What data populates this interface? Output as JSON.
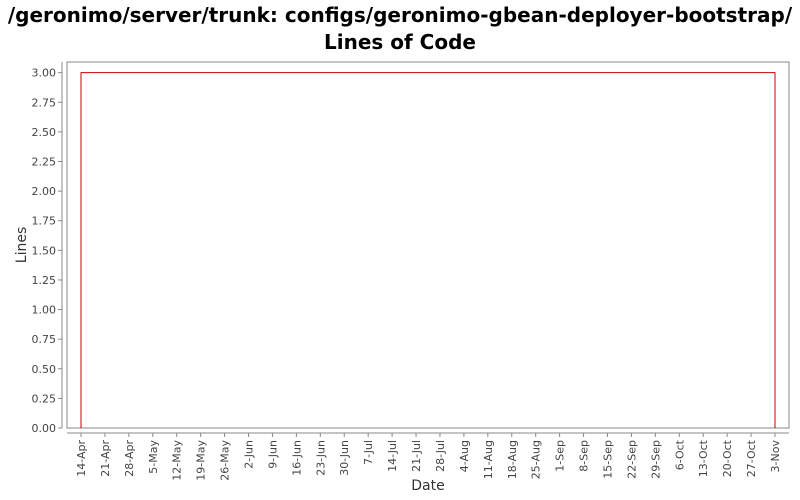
{
  "chart_data": {
    "type": "line",
    "title": "/geronimo/server/trunk: configs/geronimo-gbean-deployer-bootstrap/ Lines of Code",
    "xlabel": "Date",
    "ylabel": "Lines",
    "ylim": [
      0,
      3.09
    ],
    "yticks": [
      "0.00",
      "0.25",
      "0.50",
      "0.75",
      "1.00",
      "1.25",
      "1.50",
      "1.75",
      "2.00",
      "2.25",
      "2.50",
      "2.75",
      "3.00"
    ],
    "xticks": [
      "14-Apr",
      "21-Apr",
      "28-Apr",
      "5-May",
      "12-May",
      "19-May",
      "26-May",
      "2-Jun",
      "9-Jun",
      "16-Jun",
      "23-Jun",
      "30-Jun",
      "7-Jul",
      "14-Jul",
      "21-Jul",
      "28-Jul",
      "4-Aug",
      "11-Aug",
      "18-Aug",
      "25-Aug",
      "1-Sep",
      "8-Sep",
      "15-Sep",
      "22-Sep",
      "29-Sep",
      "6-Oct",
      "13-Oct",
      "20-Oct",
      "27-Oct",
      "3-Nov"
    ],
    "grid": false,
    "series": [
      {
        "color": "#cc0000",
        "x": [
          "14-Apr",
          "14-Apr",
          "3-Nov",
          "3-Nov"
        ],
        "values": [
          0,
          3,
          3,
          0
        ]
      }
    ]
  }
}
